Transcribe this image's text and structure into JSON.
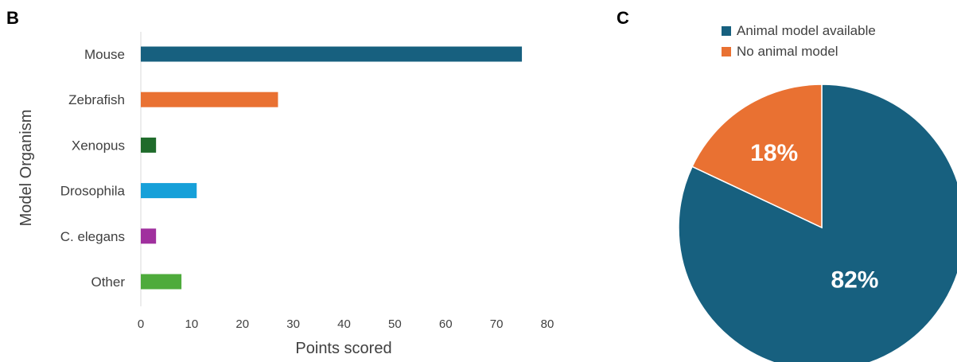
{
  "chart_data": [
    {
      "panel": "B",
      "type": "bar",
      "orientation": "horizontal",
      "categories": [
        "Mouse",
        "Zebrafish",
        "Xenopus",
        "Drosophila",
        "C. elegans",
        "Other"
      ],
      "values": [
        75,
        27,
        3,
        11,
        3,
        8
      ],
      "colors": [
        "#17607f",
        "#e97132",
        "#1f6b2b",
        "#16a0d9",
        "#a0309e",
        "#4eab3c"
      ],
      "xlabel": "Points scored",
      "ylabel": "Model Organism",
      "xlim": [
        0,
        80
      ],
      "xticks": [
        0,
        10,
        20,
        30,
        40,
        50,
        60,
        70,
        80
      ],
      "grid": false
    },
    {
      "panel": "C",
      "type": "pie",
      "labels": [
        "Animal model available",
        "No animal model"
      ],
      "values": [
        82,
        18
      ],
      "value_labels": [
        "82%",
        "18%"
      ],
      "colors": [
        "#17607f",
        "#e97132"
      ],
      "legend": "top"
    }
  ]
}
